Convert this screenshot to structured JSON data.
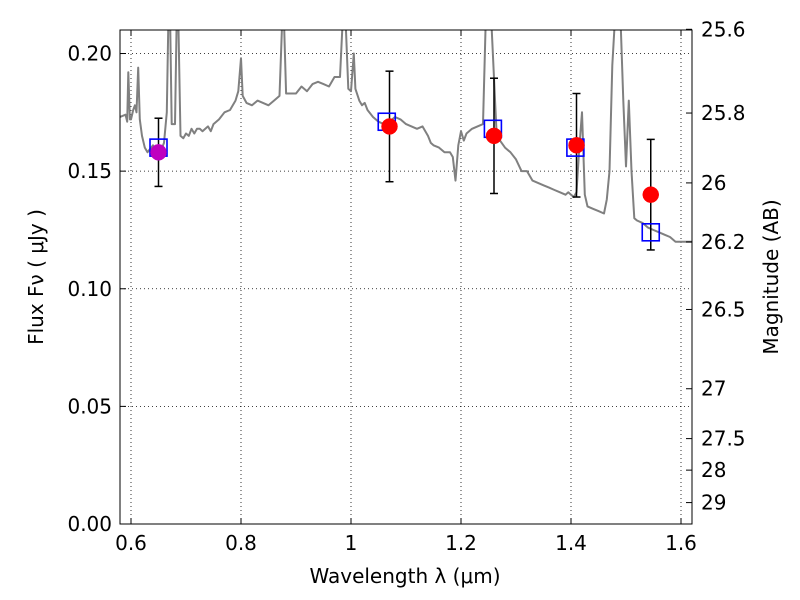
{
  "chart_data": {
    "type": "scatter",
    "xlabel": "Wavelength  λ (μm)",
    "ylabel": "Flux  Fν  ( μJy )",
    "ylabel_right": "Magnitude (AB)",
    "xlim": [
      0.58,
      1.62
    ],
    "ylim": [
      0.0,
      0.21
    ],
    "grid": true,
    "x_ticks": [
      0.6,
      0.8,
      1.0,
      1.2,
      1.4,
      1.6
    ],
    "x_tick_labels": [
      "0.6",
      "0.8",
      "1",
      "1.2",
      "1.4",
      "1.6"
    ],
    "y_ticks": [
      0.0,
      0.05,
      0.1,
      0.15,
      0.2
    ],
    "y_tick_labels": [
      "0.00",
      "0.05",
      "0.10",
      "0.15",
      "0.20"
    ],
    "right_ticks": [
      {
        "flux": 0.2103,
        "label": "25.6"
      },
      {
        "flux": 0.1747,
        "label": "25.8"
      },
      {
        "flux": 0.145,
        "label": "26"
      },
      {
        "flux": 0.1199,
        "label": "26.2"
      },
      {
        "flux": 0.0912,
        "label": "26.5"
      },
      {
        "flux": 0.0575,
        "label": "27"
      },
      {
        "flux": 0.0363,
        "label": "27.5"
      },
      {
        "flux": 0.0229,
        "label": "28"
      },
      {
        "flux": 0.0091,
        "label": "29"
      }
    ],
    "series": [
      {
        "name": "model_spectrum",
        "kind": "line",
        "color": "#808080",
        "points": [
          [
            0.58,
            0.173
          ],
          [
            0.59,
            0.174
          ],
          [
            0.593,
            0.171
          ],
          [
            0.595,
            0.192
          ],
          [
            0.598,
            0.172
          ],
          [
            0.6,
            0.172
          ],
          [
            0.604,
            0.176
          ],
          [
            0.607,
            0.178
          ],
          [
            0.61,
            0.175
          ],
          [
            0.613,
            0.194
          ],
          [
            0.616,
            0.172
          ],
          [
            0.62,
            0.165
          ],
          [
            0.625,
            0.16
          ],
          [
            0.63,
            0.158
          ],
          [
            0.64,
            0.161
          ],
          [
            0.65,
            0.156
          ],
          [
            0.66,
            0.162
          ],
          [
            0.665,
            0.175
          ],
          [
            0.668,
            0.215
          ],
          [
            0.671,
            0.215
          ],
          [
            0.674,
            0.17
          ],
          [
            0.68,
            0.17
          ],
          [
            0.683,
            0.215
          ],
          [
            0.686,
            0.215
          ],
          [
            0.69,
            0.165
          ],
          [
            0.695,
            0.164
          ],
          [
            0.7,
            0.166
          ],
          [
            0.705,
            0.165
          ],
          [
            0.71,
            0.168
          ],
          [
            0.715,
            0.166
          ],
          [
            0.72,
            0.168
          ],
          [
            0.725,
            0.168
          ],
          [
            0.73,
            0.167
          ],
          [
            0.74,
            0.169
          ],
          [
            0.745,
            0.167
          ],
          [
            0.75,
            0.17
          ],
          [
            0.76,
            0.172
          ],
          [
            0.77,
            0.175
          ],
          [
            0.78,
            0.176
          ],
          [
            0.79,
            0.18
          ],
          [
            0.795,
            0.184
          ],
          [
            0.8,
            0.198
          ],
          [
            0.803,
            0.182
          ],
          [
            0.81,
            0.179
          ],
          [
            0.82,
            0.178
          ],
          [
            0.83,
            0.18
          ],
          [
            0.84,
            0.179
          ],
          [
            0.85,
            0.178
          ],
          [
            0.86,
            0.18
          ],
          [
            0.87,
            0.182
          ],
          [
            0.875,
            0.215
          ],
          [
            0.878,
            0.215
          ],
          [
            0.882,
            0.183
          ],
          [
            0.9,
            0.183
          ],
          [
            0.91,
            0.186
          ],
          [
            0.92,
            0.184
          ],
          [
            0.93,
            0.187
          ],
          [
            0.94,
            0.188
          ],
          [
            0.95,
            0.187
          ],
          [
            0.96,
            0.186
          ],
          [
            0.97,
            0.19
          ],
          [
            0.98,
            0.19
          ],
          [
            0.985,
            0.215
          ],
          [
            0.99,
            0.215
          ],
          [
            0.995,
            0.185
          ],
          [
            1.0,
            0.184
          ],
          [
            1.005,
            0.2
          ],
          [
            1.008,
            0.185
          ],
          [
            1.015,
            0.18
          ],
          [
            1.02,
            0.178
          ],
          [
            1.025,
            0.179
          ],
          [
            1.03,
            0.176
          ],
          [
            1.04,
            0.173
          ],
          [
            1.05,
            0.171
          ],
          [
            1.06,
            0.17
          ],
          [
            1.07,
            0.171
          ],
          [
            1.08,
            0.173
          ],
          [
            1.09,
            0.172
          ],
          [
            1.1,
            0.17
          ],
          [
            1.11,
            0.169
          ],
          [
            1.12,
            0.168
          ],
          [
            1.13,
            0.169
          ],
          [
            1.14,
            0.165
          ],
          [
            1.145,
            0.162
          ],
          [
            1.15,
            0.161
          ],
          [
            1.16,
            0.16
          ],
          [
            1.17,
            0.158
          ],
          [
            1.18,
            0.158
          ],
          [
            1.185,
            0.156
          ],
          [
            1.19,
            0.146
          ],
          [
            1.195,
            0.161
          ],
          [
            1.2,
            0.167
          ],
          [
            1.205,
            0.163
          ],
          [
            1.21,
            0.166
          ],
          [
            1.22,
            0.168
          ],
          [
            1.23,
            0.169
          ],
          [
            1.24,
            0.17
          ],
          [
            1.245,
            0.215
          ],
          [
            1.255,
            0.215
          ],
          [
            1.265,
            0.165
          ],
          [
            1.28,
            0.16
          ],
          [
            1.29,
            0.158
          ],
          [
            1.3,
            0.155
          ],
          [
            1.31,
            0.15
          ],
          [
            1.32,
            0.15
          ],
          [
            1.33,
            0.146
          ],
          [
            1.34,
            0.145
          ],
          [
            1.35,
            0.144
          ],
          [
            1.36,
            0.143
          ],
          [
            1.37,
            0.142
          ],
          [
            1.38,
            0.141
          ],
          [
            1.39,
            0.14
          ],
          [
            1.395,
            0.141
          ],
          [
            1.4,
            0.14
          ],
          [
            1.405,
            0.139
          ],
          [
            1.41,
            0.141
          ],
          [
            1.415,
            0.16
          ],
          [
            1.42,
            0.175
          ],
          [
            1.425,
            0.14
          ],
          [
            1.43,
            0.135
          ],
          [
            1.44,
            0.134
          ],
          [
            1.45,
            0.133
          ],
          [
            1.46,
            0.132
          ],
          [
            1.465,
            0.138
          ],
          [
            1.47,
            0.15
          ],
          [
            1.475,
            0.195
          ],
          [
            1.48,
            0.215
          ],
          [
            1.49,
            0.215
          ],
          [
            1.495,
            0.18
          ],
          [
            1.5,
            0.152
          ],
          [
            1.505,
            0.18
          ],
          [
            1.51,
            0.15
          ],
          [
            1.515,
            0.13
          ],
          [
            1.52,
            0.129
          ],
          [
            1.53,
            0.128
          ],
          [
            1.54,
            0.126
          ],
          [
            1.55,
            0.125
          ],
          [
            1.56,
            0.124
          ],
          [
            1.57,
            0.123
          ],
          [
            1.58,
            0.122
          ],
          [
            1.59,
            0.12
          ],
          [
            1.6,
            0.12
          ],
          [
            1.62,
            0.12
          ]
        ]
      },
      {
        "name": "observed_flux",
        "kind": "points_with_errorbars",
        "marker": "circle",
        "points": [
          {
            "x": 0.65,
            "y": 0.158,
            "err_lo": 0.0145,
            "err_hi": 0.0145,
            "color": "#bf00bf"
          },
          {
            "x": 1.07,
            "y": 0.169,
            "err_lo": 0.0235,
            "err_hi": 0.0235,
            "color": "#ff0000"
          },
          {
            "x": 1.26,
            "y": 0.165,
            "err_lo": 0.0245,
            "err_hi": 0.0245,
            "color": "#ff0000"
          },
          {
            "x": 1.41,
            "y": 0.161,
            "err_lo": 0.022,
            "err_hi": 0.022,
            "color": "#ff0000"
          },
          {
            "x": 1.545,
            "y": 0.14,
            "err_lo": 0.0235,
            "err_hi": 0.0235,
            "color": "#ff0000"
          }
        ]
      },
      {
        "name": "model_band_flux",
        "kind": "points",
        "marker": "open-square",
        "color": "#0000ff",
        "points": [
          {
            "x": 0.65,
            "y": 0.16
          },
          {
            "x": 1.065,
            "y": 0.171
          },
          {
            "x": 1.258,
            "y": 0.168
          },
          {
            "x": 1.408,
            "y": 0.16
          },
          {
            "x": 1.545,
            "y": 0.124
          }
        ]
      }
    ]
  }
}
